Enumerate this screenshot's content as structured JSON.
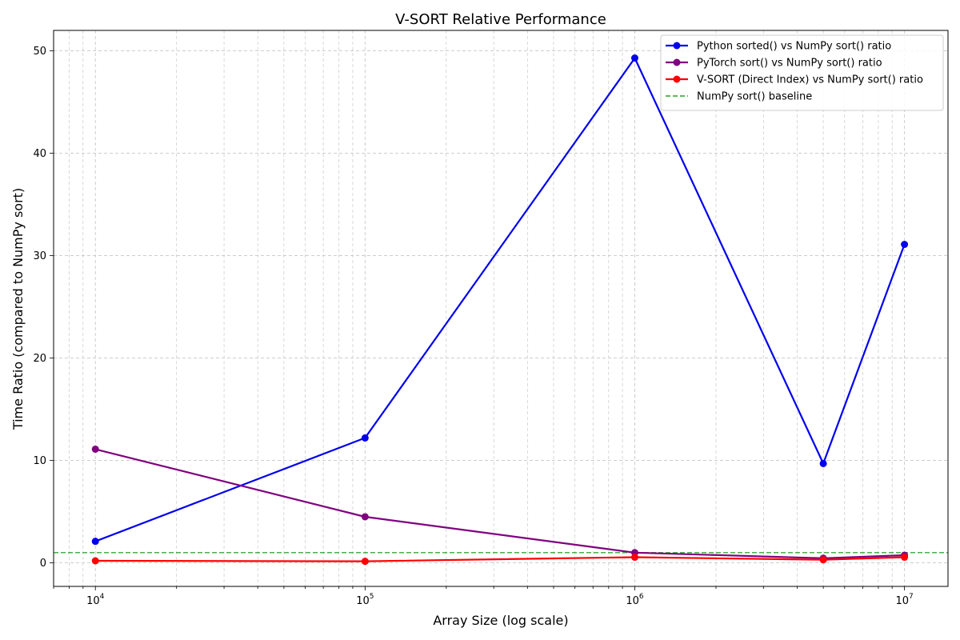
{
  "chart_data": {
    "type": "line",
    "title": "V-SORT Relative Performance",
    "xlabel": "Array Size (log scale)",
    "ylabel": "Time Ratio (compared to NumPy sort)",
    "x_scale": "log",
    "xlim": [
      7000,
      14500000
    ],
    "ylim": [
      -2.3,
      52.0
    ],
    "x_tick_labels": [
      {
        "value": 10000,
        "base": "10",
        "exp": "4"
      },
      {
        "value": 100000,
        "base": "10",
        "exp": "5"
      },
      {
        "value": 1000000,
        "base": "10",
        "exp": "6"
      },
      {
        "value": 10000000,
        "base": "10",
        "exp": "7"
      }
    ],
    "y_ticks": [
      0,
      10,
      20,
      30,
      40,
      50
    ],
    "y_tick_labels": [
      "0",
      "10",
      "20",
      "30",
      "40",
      "50"
    ],
    "grid": true,
    "legend_position": "top-right",
    "x": [
      10000,
      100000,
      1000000,
      5000000,
      10000000
    ],
    "series": [
      {
        "name": "Python sorted() vs NumPy sort() ratio",
        "color": "#0000ee",
        "values": [
          2.1,
          12.2,
          49.3,
          9.7,
          31.1
        ]
      },
      {
        "name": "PyTorch sort() vs NumPy sort() ratio",
        "color": "#800080",
        "values": [
          11.1,
          4.5,
          1.0,
          0.45,
          0.75
        ]
      },
      {
        "name": "V-SORT (Direct Index) vs NumPy sort() ratio",
        "color": "#ff0000",
        "values": [
          0.2,
          0.15,
          0.55,
          0.3,
          0.55
        ]
      }
    ],
    "baseline": {
      "name": "NumPy sort() baseline",
      "value": 1.0,
      "color": "#2ca02c"
    }
  }
}
